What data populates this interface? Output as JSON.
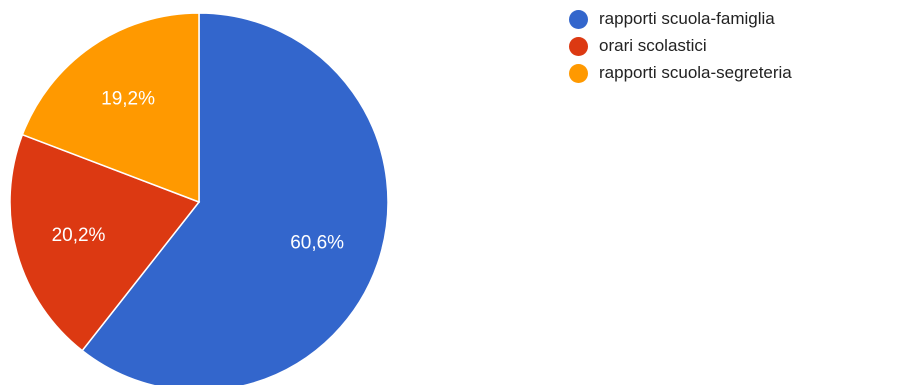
{
  "chart_data": {
    "type": "pie",
    "slices": [
      {
        "label": "rapporti scuola-famiglia",
        "value": 60.6,
        "display": "60,6%",
        "color": "#3366cc"
      },
      {
        "label": "orari scolastici",
        "value": 20.2,
        "display": "20,2%",
        "color": "#dc3912"
      },
      {
        "label": "rapporti scuola-segreteria",
        "value": 19.2,
        "display": "19,2%",
        "color": "#ff9900"
      }
    ],
    "start_angle_deg": 90,
    "direction": "clockwise",
    "legend_position": "right",
    "slice_border_color": "#ffffff"
  }
}
